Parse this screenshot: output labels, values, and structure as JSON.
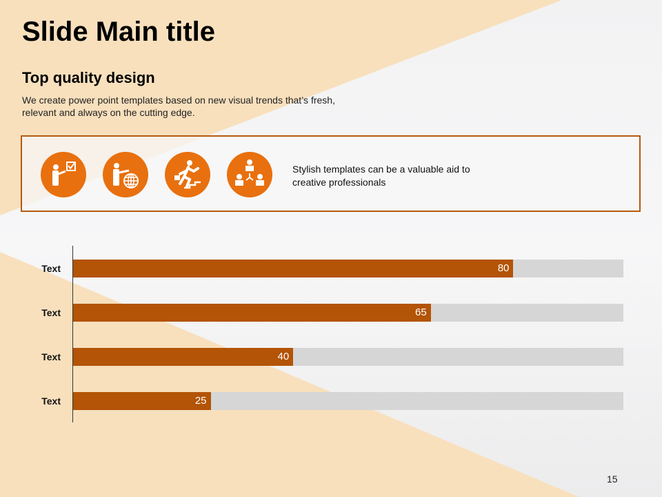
{
  "title": "Slide Main title",
  "subtitle": "Top quality design",
  "description": "We create power point templates based on new visual trends that’s fresh, relevant and always on the cutting edge.",
  "feature_box": {
    "text": "Stylish templates can be a valuable aid to creative professionals",
    "icons": [
      "presenter-checkbox-icon",
      "presenter-globe-icon",
      "running-upstairs-icon",
      "team-hierarchy-icon"
    ]
  },
  "colors": {
    "accent": "#e8700f",
    "bar": "#b35406",
    "track": "#d6d6d6"
  },
  "chart_data": {
    "type": "bar",
    "orientation": "horizontal",
    "categories": [
      "Text",
      "Text",
      "Text",
      "Text"
    ],
    "values": [
      80,
      65,
      40,
      25
    ],
    "xlim": [
      0,
      100
    ]
  },
  "page_number": "15"
}
